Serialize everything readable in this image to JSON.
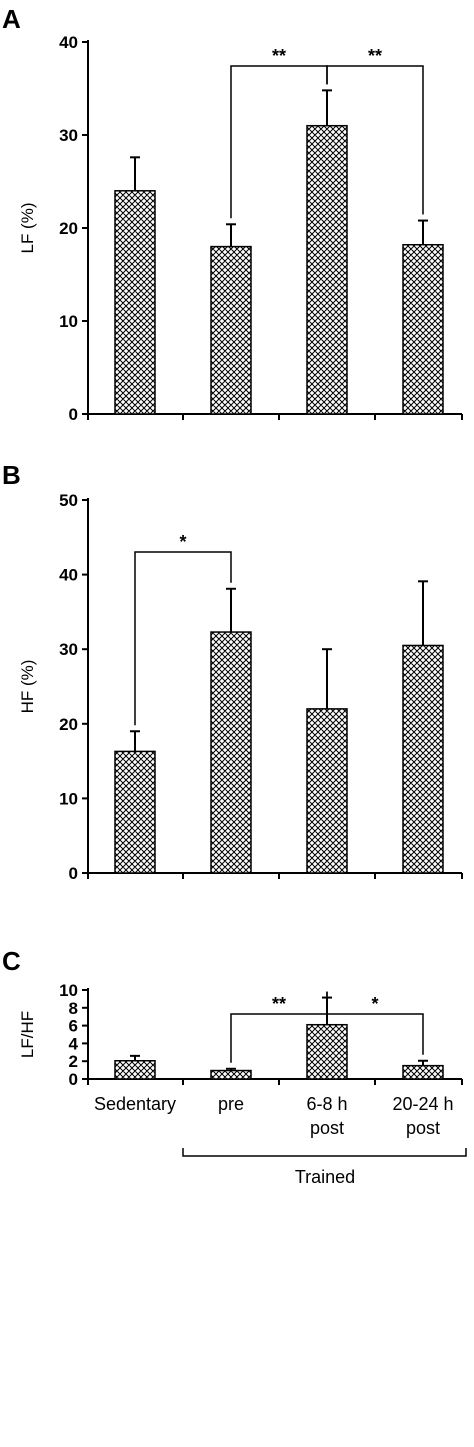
{
  "chart_data": [
    {
      "panel_label": "A",
      "type": "bar",
      "categories": [
        "Sedentary",
        "pre",
        "6-8 h post",
        "20-24 h post"
      ],
      "values": [
        24,
        18,
        31,
        18.2
      ],
      "errors": [
        3.6,
        2.4,
        3.8,
        2.6
      ],
      "ylabel": "LF (%)",
      "ylim": [
        0,
        40
      ],
      "yticks": [
        "0",
        "10",
        "20",
        "30",
        "40"
      ],
      "significance": [
        {
          "from": 1,
          "to": 2,
          "label": "**"
        },
        {
          "from": 2,
          "to": 3,
          "label": "**"
        }
      ]
    },
    {
      "panel_label": "B",
      "type": "bar",
      "categories": [
        "Sedentary",
        "pre",
        "6-8 h post",
        "20-24 h post"
      ],
      "values": [
        16.3,
        32.3,
        22,
        30.5
      ],
      "errors": [
        2.7,
        5.8,
        8,
        8.6
      ],
      "ylabel": "HF (%)",
      "ylim": [
        0,
        50
      ],
      "yticks": [
        "0",
        "10",
        "20",
        "30",
        "40",
        "50"
      ],
      "significance": [
        {
          "from": 0,
          "to": 1,
          "label": "*"
        }
      ]
    },
    {
      "panel_label": "C",
      "type": "bar",
      "categories": [
        "Sedentary",
        "pre",
        "6-8 h post",
        "20-24 h post"
      ],
      "values": [
        2.05,
        0.95,
        6.1,
        1.5
      ],
      "errors": [
        0.55,
        0.2,
        3.05,
        0.55
      ],
      "ylabel": "LF/HF",
      "ylim": [
        0,
        10
      ],
      "yticks": [
        "0",
        "2",
        "4",
        "6",
        "8",
        "10"
      ],
      "significance": [
        {
          "from": 1,
          "to": 2,
          "label": "**"
        },
        {
          "from": 2,
          "to": 3,
          "label": "*"
        }
      ]
    }
  ],
  "x_labels": [
    {
      "lines": [
        "Sedentary"
      ]
    },
    {
      "lines": [
        "pre"
      ]
    },
    {
      "lines": [
        "6-8 h",
        "post"
      ]
    },
    {
      "lines": [
        "20-24 h",
        "post"
      ]
    }
  ],
  "group_label": "Trained",
  "colors": {
    "bar_hatch": "#000000",
    "bar_fill": "#ffffff",
    "axis": "#000000"
  }
}
